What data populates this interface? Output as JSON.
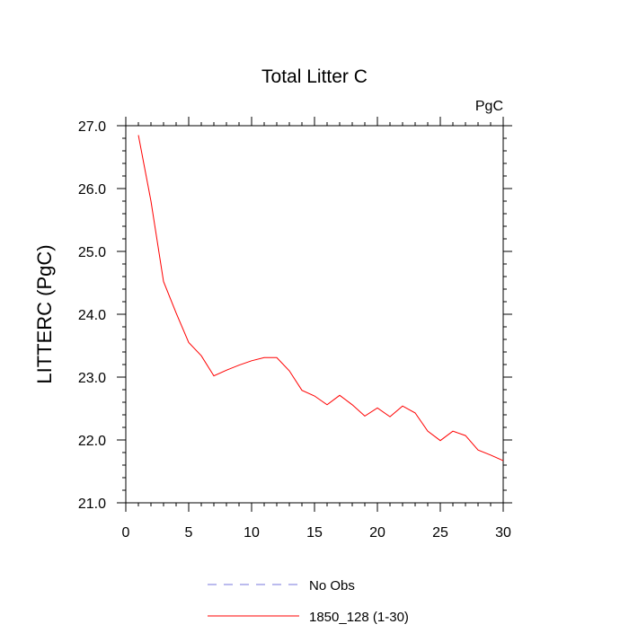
{
  "chart_data": {
    "type": "line",
    "title": "Total Litter C",
    "units_label": "PgC",
    "ylabel": "LITTERC  (PgC)",
    "xlabel": "",
    "xlim": [
      0,
      30
    ],
    "ylim": [
      21.0,
      27.0
    ],
    "x_ticks": [
      0,
      5,
      10,
      15,
      20,
      25,
      30
    ],
    "x_tick_labels": [
      "0",
      "5",
      "10",
      "15",
      "20",
      "25",
      "30"
    ],
    "y_ticks": [
      21.0,
      22.0,
      23.0,
      24.0,
      25.0,
      26.0,
      27.0
    ],
    "y_tick_labels": [
      "21.0",
      "22.0",
      "23.0",
      "24.0",
      "25.0",
      "26.0",
      "27.0"
    ],
    "grid": false,
    "legend_position": "bottom-center",
    "series": [
      {
        "name": "No Obs",
        "color": "#7777dd",
        "dash": true,
        "x": [],
        "y": []
      },
      {
        "name": "1850_128 (1-30)",
        "color": "#ff0000",
        "dash": false,
        "x": [
          1,
          2,
          3,
          4,
          5,
          6,
          7,
          8,
          9,
          10,
          11,
          12,
          13,
          14,
          15,
          16,
          17,
          18,
          19,
          20,
          21,
          22,
          23,
          24,
          25,
          26,
          27,
          28,
          29,
          30
        ],
        "y": [
          26.85,
          25.8,
          24.52,
          24.02,
          23.55,
          23.34,
          23.02,
          23.11,
          23.19,
          23.26,
          23.31,
          23.31,
          23.1,
          22.79,
          22.7,
          22.56,
          22.71,
          22.56,
          22.38,
          22.51,
          22.37,
          22.54,
          22.43,
          22.14,
          21.99,
          22.14,
          22.07,
          21.84,
          21.76,
          21.67
        ]
      }
    ]
  }
}
